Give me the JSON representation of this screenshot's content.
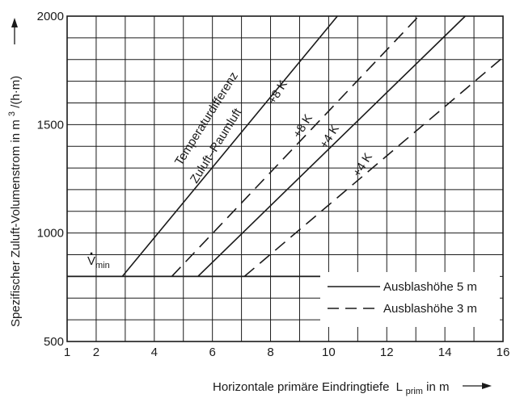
{
  "chart_data": {
    "type": "line",
    "xlabel": "Horizontale primäre Eindringtiefe",
    "xlabel_symbol": "L",
    "xlabel_sub": "prim",
    "xlabel_unit": " in m",
    "ylabel": "Spezifischer Zuluft-Volumenstrom in m",
    "ylabel_sup": "3",
    "ylabel_unit": "/(h·m)",
    "xlim": [
      1,
      16
    ],
    "ylim": [
      500,
      2000
    ],
    "xticks": [
      1,
      2,
      4,
      6,
      8,
      10,
      12,
      14,
      16
    ],
    "yticks": [
      500,
      1000,
      1500,
      2000
    ],
    "grid": true,
    "series": [
      {
        "name": "+8 K",
        "style": "solid",
        "x": [
          2.9,
          10.3
        ],
        "y": [
          800,
          2000
        ]
      },
      {
        "name": "+4 K",
        "style": "solid",
        "x": [
          5.5,
          14.7
        ],
        "y": [
          800,
          2000
        ]
      },
      {
        "name": "+8 K",
        "style": "dashed",
        "x": [
          4.6,
          13.1
        ],
        "y": [
          800,
          2000
        ]
      },
      {
        "name": "+4 K",
        "style": "dashed",
        "x": [
          7.1,
          16.0
        ],
        "y": [
          800,
          1810
        ]
      }
    ],
    "vmin": {
      "label": "V",
      "sub": "min",
      "y": 800,
      "x": [
        1,
        10
      ]
    },
    "annotations": {
      "temp_line1": "Temperaturdifferenz",
      "temp_line2": "Zuluft–Raumluft",
      "solid_8k": "+8 K",
      "dashed_8k": "+8 K",
      "solid_4k": "+4 K",
      "dashed_4k": "+4 K"
    },
    "legend": {
      "position": "bottom-right",
      "entries": [
        {
          "label": "Ausblashöhe 5 m",
          "style": "solid"
        },
        {
          "label": "Ausblashöhe 3 m",
          "style": "dashed"
        }
      ]
    }
  },
  "colors": {
    "line": "#1a1a1a",
    "grid": "#1a1a1a"
  }
}
